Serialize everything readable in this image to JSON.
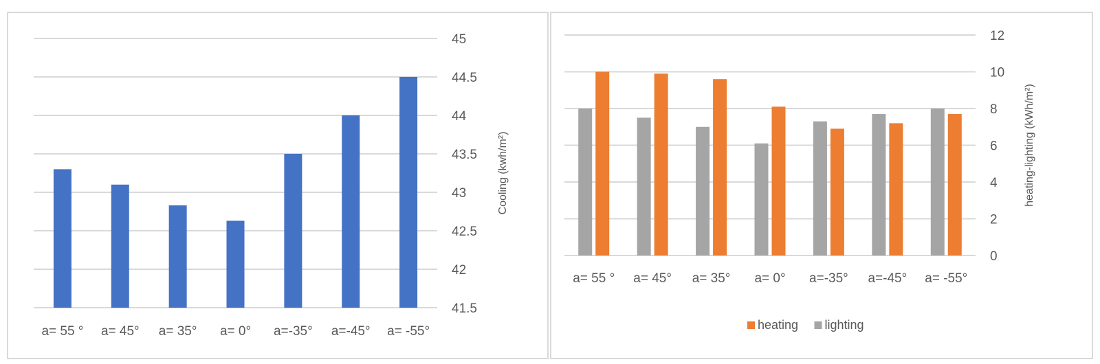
{
  "chart_data": [
    {
      "type": "bar",
      "categories": [
        "a= 55 °",
        "a= 45°",
        "a= 35°",
        "a= 0°",
        "a=-35°",
        "a=-45°",
        "a= -55°"
      ],
      "series": [
        {
          "values": [
            43.3,
            43.1,
            42.83,
            42.63,
            43.5,
            44.0,
            44.5
          ],
          "color": "#4472c4"
        }
      ],
      "ylabel": "Cooling (kwh/m²)",
      "ylim": [
        41.5,
        45
      ],
      "yticks": [
        "45",
        "44.5",
        "44",
        "43.5",
        "43",
        "42.5",
        "42",
        "41.5"
      ],
      "y_axis_side": "right",
      "grid": true,
      "legend": "none"
    },
    {
      "type": "bar",
      "categories": [
        "a= 55 °",
        "a= 45°",
        "a= 35°",
        "a= 0°",
        "a=-35°",
        "a=-45°",
        "a= -55°"
      ],
      "series": [
        {
          "name": "lighting",
          "values": [
            8.0,
            7.5,
            7.0,
            6.1,
            7.3,
            7.7,
            8.0
          ],
          "color": "#a5a5a5"
        },
        {
          "name": "heating",
          "values": [
            10.0,
            9.9,
            9.6,
            8.1,
            6.9,
            7.2,
            7.7
          ],
          "color": "#ed7d31"
        }
      ],
      "legend_order": [
        "heating",
        "lighting"
      ],
      "ylabel": "heating-lighting (kWh/m²)",
      "ylim": [
        0,
        12
      ],
      "yticks": [
        "12",
        "10",
        "8",
        "6",
        "4",
        "2",
        "0"
      ],
      "y_axis_side": "right",
      "grid": true,
      "legend": "bottom"
    }
  ]
}
